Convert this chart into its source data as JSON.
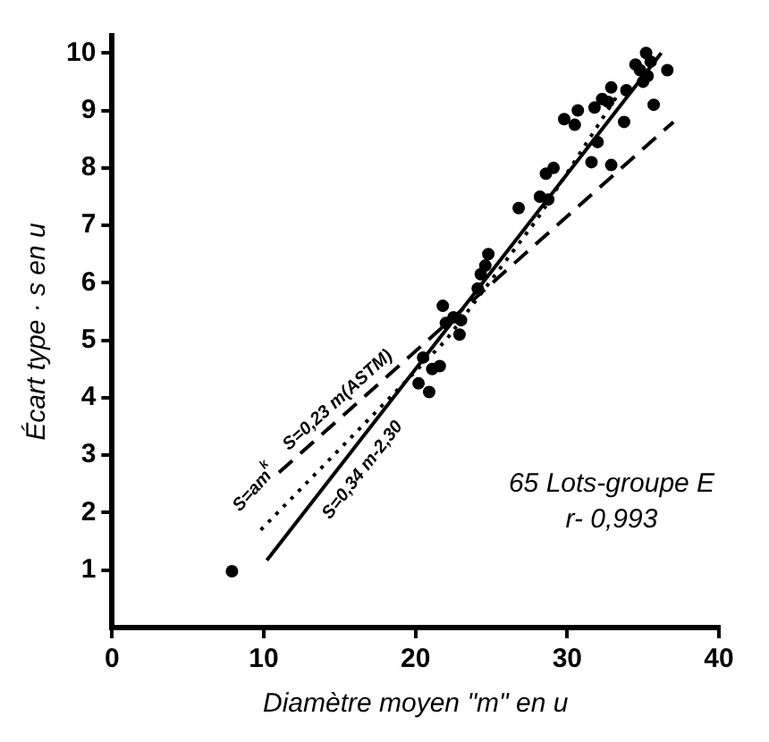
{
  "chart_data": {
    "type": "scatter",
    "xlabel": "Diamètre moyen \"m\" en u",
    "ylabel": "Écart type · s en u",
    "xlim": [
      0,
      40
    ],
    "xticks": [
      0,
      10,
      20,
      30,
      40
    ],
    "ylim": [
      0,
      10.3
    ],
    "yticks": [
      1,
      2,
      3,
      4,
      5,
      6,
      7,
      8,
      9,
      10
    ],
    "grid": false,
    "legend": false,
    "marker": "circle",
    "series": [
      {
        "color": "#000000",
        "x": [
          7.9,
          20.9,
          21.1,
          21.6,
          20.5,
          20.2,
          21.8,
          22,
          22.5,
          22.9,
          23,
          24.1,
          24.6,
          24.3,
          24.8,
          26.8,
          28.2,
          28.75,
          28.6,
          29.1,
          30.5,
          31.6,
          32,
          32.9,
          31.8,
          32.3,
          32.9,
          33.75,
          33.9,
          34.5,
          34.8,
          35.2,
          35.5,
          35.3,
          35.7,
          36.6,
          35,
          32.7,
          30.7,
          29.8
        ],
        "values": [
          0.98,
          4.1,
          4.5,
          4.55,
          4.7,
          4.25,
          5.6,
          5.3,
          5.4,
          5.1,
          5.35,
          5.9,
          6.3,
          6.15,
          6.5,
          7.3,
          7.5,
          7.45,
          7.9,
          8.0,
          8.75,
          8.1,
          8.45,
          8.05,
          9.05,
          9.2,
          9.4,
          8.8,
          9.35,
          9.8,
          9.7,
          10.0,
          9.85,
          9.6,
          9.1,
          9.7,
          9.5,
          9.15,
          9.0,
          8.85
        ]
      },
      {
        "type": "line",
        "color": "#000000",
        "line_style": "solid",
        "marker": "none",
        "x": [
          10.2,
          36.2
        ],
        "values": [
          1.17,
          10.0
        ]
      },
      {
        "type": "line",
        "color": "#000000",
        "line_style": "dashed",
        "marker": "none",
        "x": [
          11,
          37
        ],
        "values": [
          2.7,
          8.8
        ]
      },
      {
        "type": "line",
        "color": "#000000",
        "line_style": "dotted",
        "marker": "none",
        "x": [
          9.8,
          22,
          28,
          33.4
        ],
        "values": [
          1.7,
          5.0,
          7.1,
          9.3
        ]
      }
    ],
    "annotations": [
      "S=0,23 m(ASTM)",
      "S=am$^{k}$",
      "S=0,34 m-2,30",
      "65 Lots-groupe E",
      "r- 0,993"
    ]
  }
}
